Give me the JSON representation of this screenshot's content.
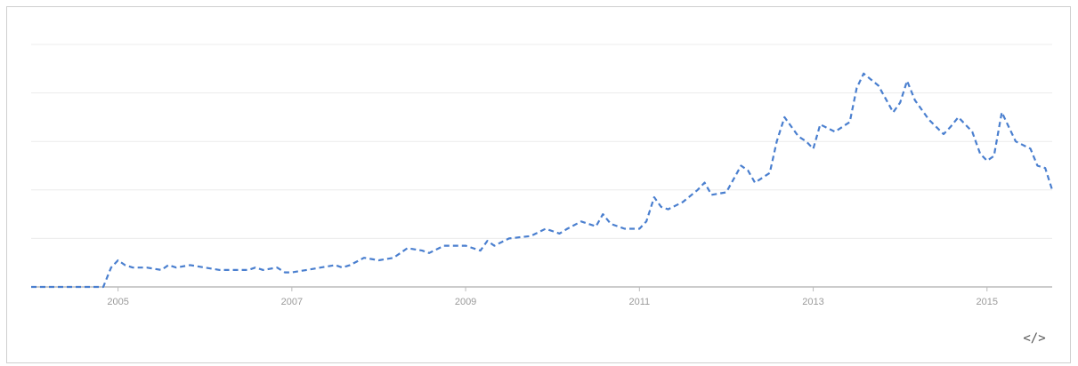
{
  "chart_data": {
    "type": "line",
    "title": "",
    "xlabel": "",
    "ylabel": "",
    "x_ticks": [
      "2005",
      "2007",
      "2009",
      "2011",
      "2013",
      "2015"
    ],
    "x_range": [
      2004.0,
      2015.75
    ],
    "ylim": [
      0,
      100
    ],
    "grid": true,
    "legend": "none",
    "series": [
      {
        "color": "#4a7fcf",
        "style": "dashed",
        "points": [
          [
            2004.0,
            0
          ],
          [
            2004.5,
            0
          ],
          [
            2004.83,
            0
          ],
          [
            2004.92,
            8
          ],
          [
            2005.0,
            11
          ],
          [
            2005.08,
            9
          ],
          [
            2005.17,
            8
          ],
          [
            2005.33,
            8
          ],
          [
            2005.5,
            7
          ],
          [
            2005.58,
            9
          ],
          [
            2005.67,
            8
          ],
          [
            2005.83,
            9
          ],
          [
            2006.0,
            8
          ],
          [
            2006.17,
            7
          ],
          [
            2006.33,
            7
          ],
          [
            2006.5,
            7
          ],
          [
            2006.58,
            8
          ],
          [
            2006.67,
            7
          ],
          [
            2006.83,
            8
          ],
          [
            2006.92,
            6
          ],
          [
            2007.0,
            6
          ],
          [
            2007.17,
            7
          ],
          [
            2007.33,
            8
          ],
          [
            2007.5,
            9
          ],
          [
            2007.58,
            8
          ],
          [
            2007.67,
            9
          ],
          [
            2007.83,
            12
          ],
          [
            2008.0,
            11
          ],
          [
            2008.17,
            12
          ],
          [
            2008.33,
            16
          ],
          [
            2008.5,
            15
          ],
          [
            2008.58,
            14
          ],
          [
            2008.75,
            17
          ],
          [
            2009.0,
            17
          ],
          [
            2009.17,
            15
          ],
          [
            2009.25,
            19
          ],
          [
            2009.33,
            17
          ],
          [
            2009.5,
            20
          ],
          [
            2009.75,
            21
          ],
          [
            2009.92,
            24
          ],
          [
            2010.08,
            22
          ],
          [
            2010.17,
            24
          ],
          [
            2010.33,
            27
          ],
          [
            2010.5,
            25
          ],
          [
            2010.58,
            30
          ],
          [
            2010.67,
            26
          ],
          [
            2010.83,
            24
          ],
          [
            2011.0,
            24
          ],
          [
            2011.08,
            27
          ],
          [
            2011.17,
            37
          ],
          [
            2011.25,
            33
          ],
          [
            2011.33,
            32
          ],
          [
            2011.5,
            35
          ],
          [
            2011.67,
            40
          ],
          [
            2011.75,
            43
          ],
          [
            2011.83,
            38
          ],
          [
            2012.0,
            39
          ],
          [
            2012.17,
            50
          ],
          [
            2012.25,
            48
          ],
          [
            2012.33,
            43
          ],
          [
            2012.5,
            47
          ],
          [
            2012.58,
            60
          ],
          [
            2012.67,
            70
          ],
          [
            2012.83,
            62
          ],
          [
            2012.92,
            60
          ],
          [
            2013.0,
            57
          ],
          [
            2013.08,
            67
          ],
          [
            2013.25,
            64
          ],
          [
            2013.42,
            68
          ],
          [
            2013.5,
            82
          ],
          [
            2013.58,
            88
          ],
          [
            2013.75,
            83
          ],
          [
            2013.92,
            72
          ],
          [
            2014.0,
            76
          ],
          [
            2014.08,
            85
          ],
          [
            2014.17,
            77
          ],
          [
            2014.33,
            69
          ],
          [
            2014.5,
            63
          ],
          [
            2014.58,
            66
          ],
          [
            2014.67,
            70
          ],
          [
            2014.83,
            64
          ],
          [
            2014.92,
            55
          ],
          [
            2015.0,
            52
          ],
          [
            2015.08,
            54
          ],
          [
            2015.17,
            72
          ],
          [
            2015.33,
            60
          ],
          [
            2015.5,
            57
          ],
          [
            2015.58,
            50
          ],
          [
            2015.67,
            49
          ],
          [
            2015.75,
            40
          ]
        ]
      }
    ]
  },
  "embed_label": "</>"
}
